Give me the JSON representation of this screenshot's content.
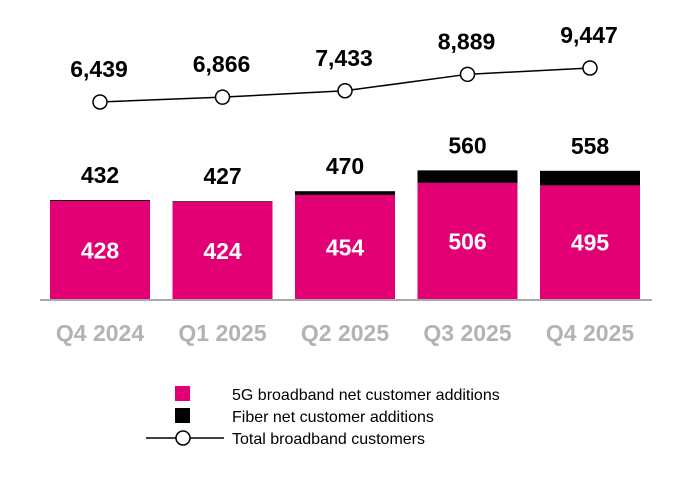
{
  "chart_data": {
    "type": "bar",
    "categories": [
      "Q4 2024",
      "Q1 2025",
      "Q2 2025",
      "Q3 2025",
      "Q4 2025"
    ],
    "series": [
      {
        "name": "5G broadband net customer additions",
        "type": "bar",
        "stacked": true,
        "color": "#e20074",
        "values": [
          428,
          424,
          454,
          506,
          495
        ]
      },
      {
        "name": "Fiber net customer additions",
        "type": "bar",
        "stacked": true,
        "color": "#000000",
        "values": [
          4,
          3,
          16,
          54,
          63
        ]
      },
      {
        "name": "Total broadband customers",
        "type": "line",
        "color": "#000000",
        "values": [
          6439,
          6866,
          7433,
          8889,
          9447
        ],
        "labels": [
          "6,439",
          "6,866",
          "7,433",
          "8,889",
          "9,447"
        ]
      }
    ],
    "bar_total_labels": [
      "432",
      "427",
      "470",
      "560",
      "558"
    ],
    "bar_5g_labels": [
      "428",
      "424",
      "454",
      "506",
      "495"
    ],
    "legend": [
      "5G broadband net customer additions",
      "Fiber net customer additions",
      "Total broadband customers"
    ],
    "legend_position": "bottom",
    "grid": false
  }
}
